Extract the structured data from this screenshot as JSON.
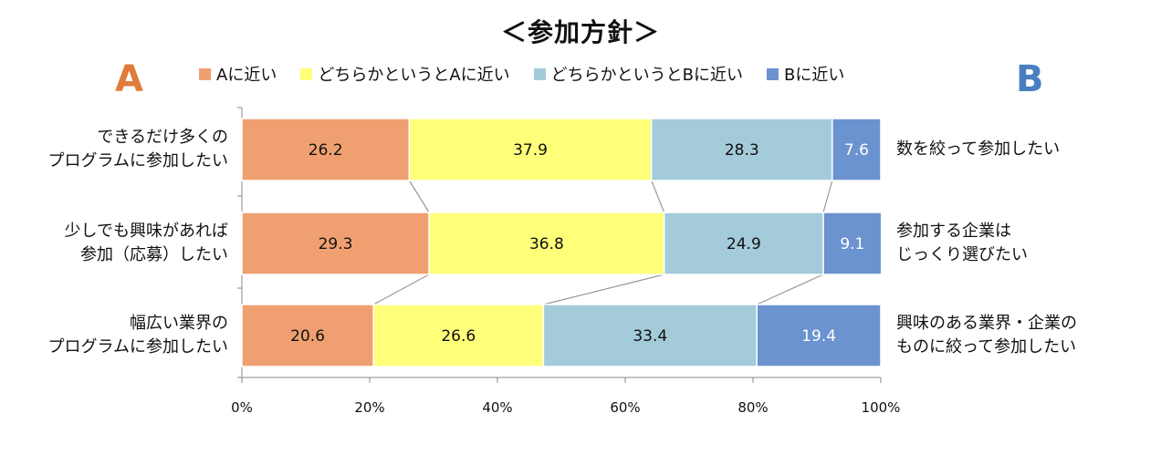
{
  "title": "＜参加方針＞",
  "side_a": {
    "text": "A",
    "color": "#E07B3A"
  },
  "side_b": {
    "text": "B",
    "color": "#4A7EC0"
  },
  "legend": [
    {
      "label": "Aに近い",
      "color": "#F0A070"
    },
    {
      "label": "どちらかというとAに近い",
      "color": "#FFFF7A"
    },
    {
      "label": "どちらかというとBに近い",
      "color": "#A3CBDA"
    },
    {
      "label": "Bに近い",
      "color": "#6A93CF"
    }
  ],
  "chart_data": {
    "type": "bar",
    "orientation": "horizontal-stacked-100",
    "title": "＜参加方針＞",
    "categories": [
      {
        "left": [
          "できるだけ多くの",
          "プログラムに参加したい"
        ],
        "right": [
          "数を絞って参加したい"
        ]
      },
      {
        "left": [
          "少しでも興味があれば",
          "参加（応募）したい"
        ],
        "right": [
          "参加する企業は",
          "じっくり選びたい"
        ]
      },
      {
        "left": [
          "幅広い業界の",
          "プログラムに参加したい"
        ],
        "right": [
          "興味のある業界・企業の",
          "ものに絞って参加したい"
        ]
      }
    ],
    "series": [
      {
        "name": "Aに近い",
        "values": [
          26.2,
          29.3,
          20.6
        ]
      },
      {
        "name": "どちらかというとAに近い",
        "values": [
          37.9,
          36.8,
          26.6
        ]
      },
      {
        "name": "どちらかというとBに近い",
        "values": [
          28.3,
          24.9,
          33.4
        ]
      },
      {
        "name": "Bに近い",
        "values": [
          7.6,
          9.1,
          19.4
        ]
      }
    ],
    "xlim": [
      0,
      100
    ],
    "xticks": [
      "0%",
      "20%",
      "40%",
      "60%",
      "80%",
      "100%"
    ],
    "legend_position": "top",
    "connector_lines": true,
    "grid": false
  }
}
